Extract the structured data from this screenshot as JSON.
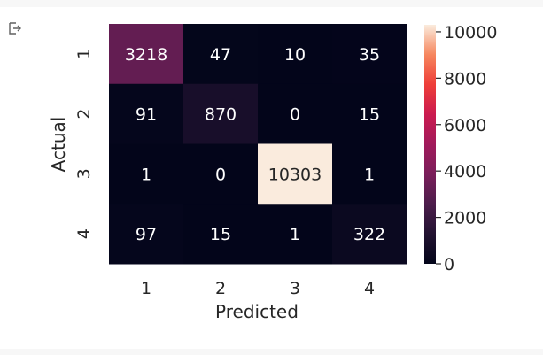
{
  "chart_data": {
    "type": "heatmap",
    "title": "",
    "xlabel": "Predicted",
    "ylabel": "Actual",
    "x_categories": [
      "1",
      "2",
      "3",
      "4"
    ],
    "y_categories": [
      "1",
      "2",
      "3",
      "4"
    ],
    "values": [
      [
        3218,
        47,
        10,
        35
      ],
      [
        91,
        870,
        0,
        15
      ],
      [
        1,
        0,
        10303,
        1
      ],
      [
        97,
        15,
        1,
        322
      ]
    ],
    "colorbar": {
      "min": 0,
      "max": 10303,
      "ticks": [
        0,
        2000,
        4000,
        6000,
        8000,
        10000
      ],
      "colormap": "rocket"
    }
  }
}
